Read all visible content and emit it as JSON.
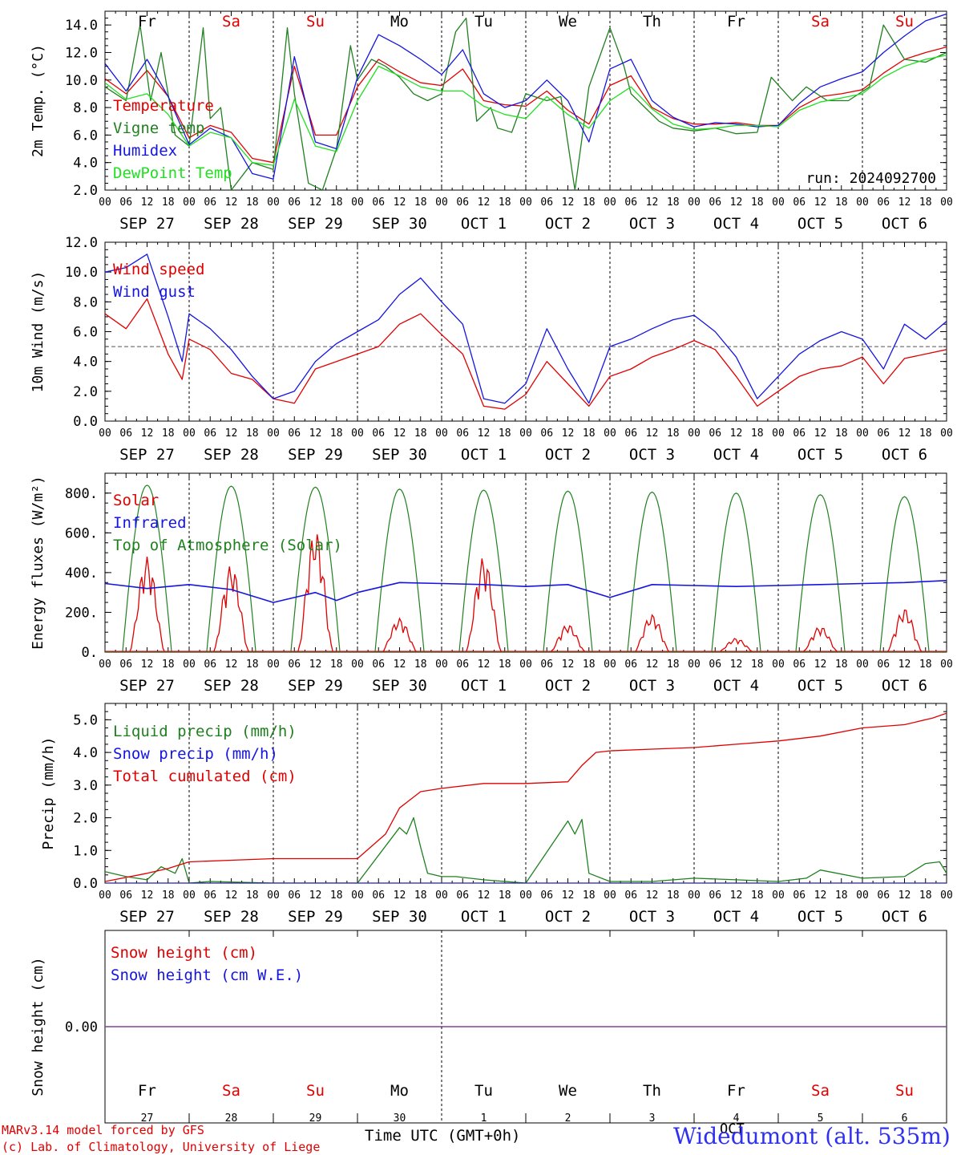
{
  "days": {
    "names": [
      "Fr",
      "Sa",
      "Su",
      "Mo",
      "Tu",
      "We",
      "Th",
      "Fr",
      "Sa",
      "Su"
    ],
    "weekend_color": "#e00000",
    "weekday_color": "#000000",
    "weekend_flags": [
      false,
      true,
      true,
      false,
      false,
      false,
      false,
      false,
      true,
      true
    ],
    "date_labels": [
      "SEP 27",
      "SEP 28",
      "SEP 29",
      "SEP 30",
      "OCT  1",
      "OCT  2",
      "OCT  3",
      "OCT  4",
      "OCT  5",
      "OCT  6"
    ],
    "day_numbers": [
      "27",
      "28",
      "29",
      "30",
      "1",
      "2",
      "3",
      "4",
      "5",
      "6"
    ],
    "hour_ticks": [
      "00",
      "06",
      "12",
      "18"
    ],
    "hour_end": "00"
  },
  "footer": {
    "model": "MARv3.14 model forced by GFS",
    "copyright": "(c) Lab. of Climatology, University of Liege",
    "time_label": "Time UTC (GMT+0h)",
    "month_label": "OCT",
    "station": "Widedumont (alt. 535m)",
    "station_color": "#3030f0"
  },
  "chart_data": [
    {
      "type": "line",
      "ylabel": "2m Temp. (°C)",
      "ylim": [
        2,
        15
      ],
      "yticks": [
        "2.0",
        "4.0",
        "6.0",
        "8.0",
        "10.0",
        "12.0",
        "14.0"
      ],
      "annotation": "run: 2024092700",
      "x_unit": "hours since SEP 27 00 UTC",
      "series": [
        {
          "name": "Temperature",
          "color": "#e00000",
          "x": [
            0,
            6,
            12,
            18,
            24,
            30,
            36,
            42,
            48,
            54,
            60,
            66,
            72,
            78,
            84,
            90,
            96,
            102,
            108,
            114,
            120,
            126,
            132,
            138,
            144,
            150,
            156,
            162,
            168,
            174,
            180,
            186,
            192,
            198,
            204,
            210,
            216,
            222,
            228,
            234,
            240
          ],
          "values": [
            10.1,
            9.0,
            10.7,
            8.8,
            5.8,
            6.7,
            6.2,
            4.3,
            4.0,
            11.0,
            6.0,
            6.0,
            9.5,
            11.5,
            10.6,
            9.8,
            9.6,
            10.8,
            8.5,
            8.2,
            8.1,
            9.2,
            7.8,
            6.8,
            9.6,
            10.3,
            8.0,
            7.2,
            6.8,
            6.8,
            6.9,
            6.7,
            6.7,
            8.0,
            8.8,
            9.0,
            9.3,
            10.5,
            11.5,
            12.0,
            12.4
          ]
        },
        {
          "name": "Vigne temp",
          "color": "#208020",
          "x": [
            0,
            6,
            10,
            13,
            16,
            20,
            24,
            28,
            30,
            33,
            36,
            42,
            48,
            52,
            54,
            58,
            62,
            66,
            70,
            72,
            76,
            80,
            84,
            88,
            92,
            96,
            100,
            103,
            106,
            110,
            112,
            116,
            120,
            126,
            130,
            134,
            138,
            144,
            148,
            150,
            154,
            158,
            162,
            168,
            174,
            180,
            186,
            190,
            196,
            200,
            206,
            212,
            218,
            222,
            228,
            234,
            240
          ],
          "values": [
            9.5,
            8.5,
            14.0,
            8.5,
            12.0,
            6.0,
            5.2,
            13.8,
            7.2,
            8.0,
            2.0,
            4.0,
            3.5,
            13.8,
            9.0,
            2.5,
            2.0,
            5.0,
            12.5,
            10.0,
            11.5,
            11.0,
            10.2,
            9.0,
            8.5,
            9.0,
            13.5,
            14.5,
            7.0,
            8.0,
            6.5,
            6.2,
            9.0,
            8.5,
            8.8,
            2.0,
            9.5,
            13.8,
            11.0,
            9.0,
            8.0,
            7.0,
            6.5,
            6.3,
            6.5,
            6.1,
            6.2,
            10.2,
            8.5,
            9.5,
            8.5,
            8.5,
            9.5,
            14.0,
            11.5,
            11.3,
            12.0
          ]
        },
        {
          "name": "Humidex",
          "color": "#1515e0",
          "x": [
            0,
            6,
            12,
            18,
            24,
            30,
            36,
            42,
            48,
            54,
            60,
            66,
            72,
            78,
            84,
            90,
            96,
            102,
            108,
            114,
            120,
            126,
            132,
            138,
            144,
            150,
            156,
            162,
            168,
            174,
            180,
            186,
            192,
            198,
            204,
            210,
            216,
            222,
            228,
            234,
            240
          ],
          "values": [
            11.2,
            9.2,
            11.5,
            8.8,
            5.3,
            6.5,
            5.8,
            3.2,
            2.8,
            11.7,
            5.5,
            5.0,
            10.2,
            13.3,
            12.5,
            11.5,
            10.4,
            12.2,
            9.0,
            8.0,
            8.5,
            10.0,
            8.5,
            5.5,
            10.8,
            11.5,
            8.5,
            7.3,
            6.6,
            6.9,
            6.8,
            6.6,
            6.7,
            8.3,
            9.5,
            10.1,
            10.6,
            12.0,
            13.2,
            14.3,
            14.8
          ]
        },
        {
          "name": "DewPoint Temp",
          "color": "#20e020",
          "x": [
            0,
            6,
            12,
            18,
            24,
            30,
            36,
            42,
            48,
            54,
            60,
            66,
            72,
            78,
            84,
            90,
            96,
            102,
            108,
            114,
            120,
            126,
            132,
            138,
            144,
            150,
            156,
            162,
            168,
            174,
            180,
            186,
            192,
            198,
            204,
            210,
            216,
            222,
            228,
            234,
            240
          ],
          "values": [
            9.8,
            8.6,
            9.0,
            7.5,
            5.2,
            6.2,
            5.8,
            4.0,
            3.8,
            8.6,
            5.2,
            4.8,
            8.5,
            11.0,
            10.3,
            9.5,
            9.2,
            9.2,
            8.1,
            7.5,
            7.2,
            8.8,
            7.5,
            6.5,
            8.5,
            9.5,
            7.9,
            6.8,
            6.4,
            6.5,
            6.7,
            6.7,
            6.6,
            7.8,
            8.4,
            8.7,
            9.0,
            10.2,
            11.0,
            11.5,
            11.8
          ]
        }
      ]
    },
    {
      "type": "line",
      "ylabel": "10m Wind (m/s)",
      "ylim": [
        0,
        12
      ],
      "yticks": [
        "0.0",
        "2.0",
        "4.0",
        "6.0",
        "8.0",
        "10.0",
        "12.0"
      ],
      "reference_line": 5.0,
      "x_unit": "hours since SEP 27 00 UTC",
      "series": [
        {
          "name": "Wind speed",
          "color": "#e00000",
          "x": [
            0,
            6,
            12,
            18,
            22,
            24,
            30,
            36,
            42,
            48,
            54,
            60,
            66,
            72,
            78,
            84,
            90,
            96,
            102,
            108,
            114,
            120,
            126,
            132,
            138,
            144,
            150,
            156,
            162,
            168,
            174,
            180,
            186,
            192,
            198,
            204,
            210,
            216,
            222,
            228,
            234,
            240
          ],
          "values": [
            7.2,
            6.2,
            8.2,
            4.5,
            2.8,
            5.5,
            4.8,
            3.2,
            2.8,
            1.5,
            1.2,
            3.5,
            4.0,
            4.5,
            5.0,
            6.5,
            7.2,
            5.8,
            4.5,
            1.0,
            0.8,
            1.8,
            4.0,
            2.5,
            1.0,
            3.0,
            3.5,
            4.3,
            4.8,
            5.4,
            4.8,
            3.0,
            1.0,
            2.0,
            3.0,
            3.5,
            3.7,
            4.3,
            2.5,
            4.2,
            4.5,
            4.8
          ]
        },
        {
          "name": "Wind gust",
          "color": "#1515e0",
          "x": [
            0,
            6,
            12,
            18,
            22,
            24,
            30,
            36,
            42,
            48,
            54,
            60,
            66,
            72,
            78,
            84,
            90,
            96,
            102,
            108,
            114,
            120,
            126,
            132,
            138,
            144,
            150,
            156,
            162,
            168,
            174,
            180,
            186,
            192,
            198,
            204,
            210,
            216,
            222,
            228,
            234,
            240
          ],
          "values": [
            10.0,
            10.3,
            11.2,
            7.0,
            4.0,
            7.2,
            6.2,
            4.8,
            3.0,
            1.5,
            2.0,
            4.0,
            5.2,
            6.0,
            6.8,
            8.5,
            9.6,
            8.0,
            6.5,
            1.5,
            1.2,
            2.5,
            6.2,
            3.5,
            1.2,
            5.0,
            5.5,
            6.2,
            6.8,
            7.1,
            6.0,
            4.3,
            1.5,
            3.0,
            4.5,
            5.4,
            6.0,
            5.5,
            3.5,
            6.5,
            5.5,
            6.7
          ]
        }
      ]
    },
    {
      "type": "line",
      "ylabel": "Energy fluxes (W/m²)",
      "ylim": [
        0,
        900
      ],
      "yticks": [
        "0.",
        "200.",
        "400.",
        "600.",
        "800."
      ],
      "x_unit": "hours since SEP 27 00 UTC",
      "toa_peaks": [
        840,
        835,
        830,
        820,
        815,
        810,
        805,
        800,
        792,
        782
      ],
      "solar_peaks": [
        480,
        440,
        615,
        170,
        480,
        140,
        190,
        70,
        130,
        220
      ],
      "series": [
        {
          "name": "Solar",
          "color": "#e00000"
        },
        {
          "name": "Infrared",
          "color": "#1515e0",
          "x": [
            0,
            12,
            24,
            36,
            48,
            60,
            66,
            72,
            84,
            96,
            108,
            120,
            132,
            144,
            156,
            168,
            180,
            192,
            204,
            216,
            228,
            240
          ],
          "values": [
            345,
            320,
            340,
            315,
            250,
            300,
            260,
            300,
            350,
            345,
            340,
            330,
            340,
            275,
            340,
            335,
            330,
            335,
            340,
            345,
            350,
            360
          ]
        },
        {
          "name": "Top of Atmosphere (Solar)",
          "color": "#208020"
        }
      ]
    },
    {
      "type": "line",
      "ylabel": "Precip (mm/h)",
      "ylim": [
        0,
        5.5
      ],
      "yticks": [
        "0.0",
        "1.0",
        "2.0",
        "3.0",
        "4.0",
        "5.0"
      ],
      "x_unit": "hours since SEP 27 00 UTC",
      "series": [
        {
          "name": "Liquid precip (mm/h)",
          "color": "#208020",
          "x": [
            0,
            6,
            12,
            16,
            20,
            22,
            24,
            30,
            48,
            72,
            84,
            86,
            88,
            90,
            92,
            96,
            100,
            108,
            120,
            132,
            134,
            136,
            138,
            144,
            156,
            168,
            180,
            192,
            200,
            204,
            216,
            228,
            234,
            238,
            240
          ],
          "values": [
            0.35,
            0.2,
            0.1,
            0.5,
            0.3,
            0.75,
            0.0,
            0.05,
            0.0,
            0.0,
            1.7,
            1.5,
            2.0,
            1.1,
            0.3,
            0.2,
            0.2,
            0.1,
            0.0,
            1.9,
            1.5,
            1.95,
            0.3,
            0.05,
            0.05,
            0.15,
            0.1,
            0.05,
            0.15,
            0.4,
            0.15,
            0.2,
            0.6,
            0.65,
            0.3
          ]
        },
        {
          "name": "Snow precip (mm/h)",
          "color": "#1515e0",
          "x": [
            0,
            240
          ],
          "values": [
            0,
            0
          ]
        },
        {
          "name": "Total cumulated (cm)",
          "color": "#e00000",
          "x": [
            0,
            12,
            18,
            24,
            36,
            48,
            60,
            72,
            80,
            84,
            90,
            96,
            108,
            120,
            132,
            136,
            140,
            144,
            156,
            168,
            180,
            192,
            204,
            216,
            228,
            236,
            240
          ],
          "values": [
            0.05,
            0.3,
            0.45,
            0.65,
            0.7,
            0.75,
            0.75,
            0.75,
            1.5,
            2.3,
            2.8,
            2.9,
            3.05,
            3.05,
            3.1,
            3.6,
            4.0,
            4.05,
            4.1,
            4.15,
            4.25,
            4.35,
            4.5,
            4.75,
            4.85,
            5.05,
            5.2
          ]
        }
      ]
    },
    {
      "type": "line",
      "ylabel": "Snow height (cm)",
      "ylim": [
        -1,
        1
      ],
      "yticks": [
        "0.00"
      ],
      "x_unit": "hours since SEP 27 00 UTC",
      "series": [
        {
          "name": "Snow height (cm)",
          "color": "#e00000",
          "x": [
            0,
            240
          ],
          "values": [
            0,
            0
          ]
        },
        {
          "name": "Snow height (cm W.E.)",
          "color": "#1515e0",
          "x": [
            0,
            240
          ],
          "values": [
            0,
            0
          ]
        }
      ]
    }
  ]
}
